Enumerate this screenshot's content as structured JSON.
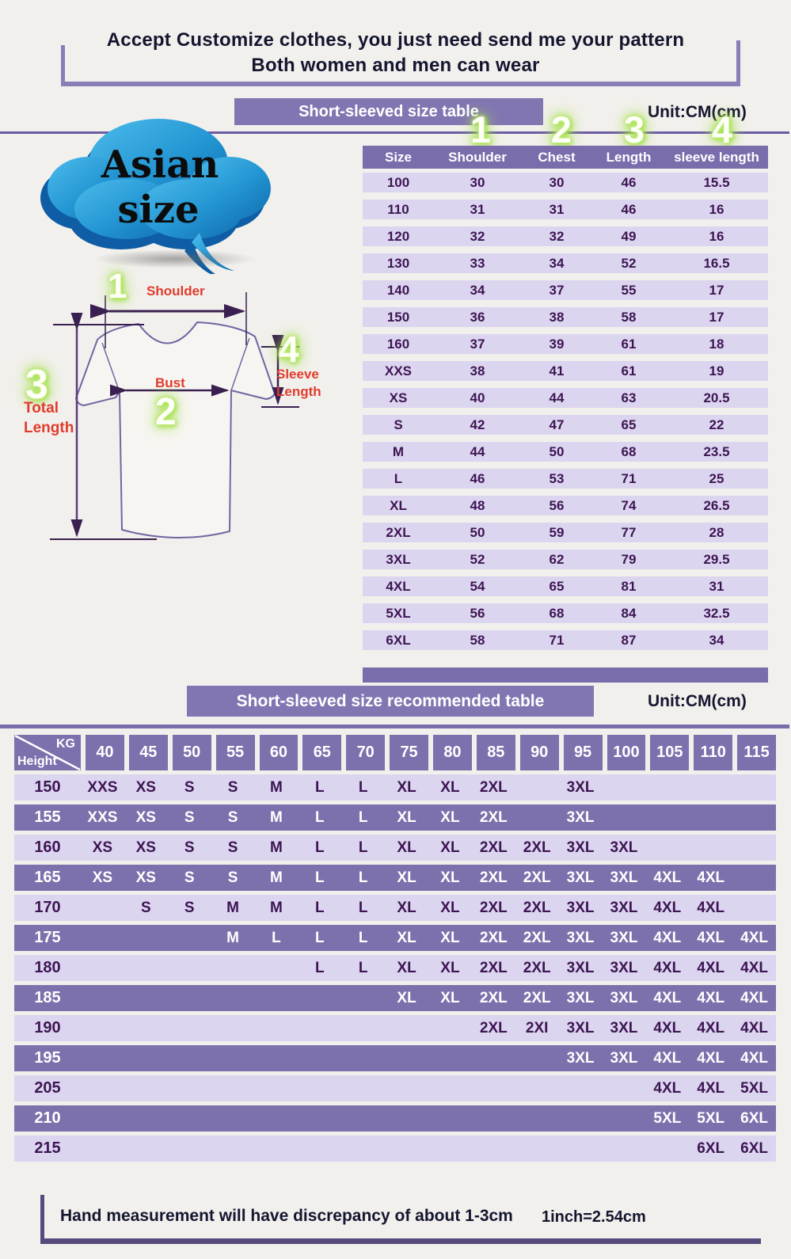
{
  "header": {
    "line1": "Accept Customize clothes, you just need send me your pattern",
    "line2": "Both women and men can wear"
  },
  "cloud": {
    "line1": "Asian",
    "line2": "size"
  },
  "diagram": {
    "marker1": {
      "num": "1",
      "label": "Shoulder"
    },
    "marker2": {
      "num": "2",
      "label": "Bust"
    },
    "marker3": {
      "num": "3",
      "label_line1": "Total",
      "label_line2": "Length"
    },
    "marker4": {
      "num": "4",
      "label_line1": "Sleeve",
      "label_line2": "Length"
    }
  },
  "section1": {
    "title": "Short-sleeved size  table",
    "unit": "Unit:CM(cm)",
    "markers": [
      "1",
      "2",
      "3",
      "4"
    ]
  },
  "section2": {
    "title": "Short-sleeved size recommended table",
    "unit": "Unit:CM(cm)",
    "corner_top": "KG",
    "corner_bottom": "Height"
  },
  "footer": {
    "note": "Hand measurement will have discrepancy of about  1-3cm",
    "conversion": "1inch=2.54cm"
  },
  "colors": {
    "accent_purple": "#8276b2",
    "row_light": "#dbd5ef",
    "row_dark": "#7e70ac",
    "text_dark": "#3d1553",
    "label_red": "#e03c2d",
    "glow_green": "#a5e24e",
    "cloud_blue": "#2f9fd8"
  },
  "chart_data": [
    {
      "type": "table",
      "title": "Short-sleeved size table",
      "unit": "CM",
      "columns": [
        "Size",
        "Shoulder",
        "Chest",
        "Length",
        "sleeve length"
      ],
      "rows": [
        [
          "100",
          "30",
          "30",
          "46",
          "15.5"
        ],
        [
          "110",
          "31",
          "31",
          "46",
          "16"
        ],
        [
          "120",
          "32",
          "32",
          "49",
          "16"
        ],
        [
          "130",
          "33",
          "34",
          "52",
          "16.5"
        ],
        [
          "140",
          "34",
          "37",
          "55",
          "17"
        ],
        [
          "150",
          "36",
          "38",
          "58",
          "17"
        ],
        [
          "160",
          "37",
          "39",
          "61",
          "18"
        ],
        [
          "XXS",
          "38",
          "41",
          "61",
          "19"
        ],
        [
          "XS",
          "40",
          "44",
          "63",
          "20.5"
        ],
        [
          "S",
          "42",
          "47",
          "65",
          "22"
        ],
        [
          "M",
          "44",
          "50",
          "68",
          "23.5"
        ],
        [
          "L",
          "46",
          "53",
          "71",
          "25"
        ],
        [
          "XL",
          "48",
          "56",
          "74",
          "26.5"
        ],
        [
          "2XL",
          "50",
          "59",
          "77",
          "28"
        ],
        [
          "3XL",
          "52",
          "62",
          "79",
          "29.5"
        ],
        [
          "4XL",
          "54",
          "65",
          "81",
          "31"
        ],
        [
          "5XL",
          "56",
          "68",
          "84",
          "32.5"
        ],
        [
          "6XL",
          "58",
          "71",
          "87",
          "34"
        ]
      ]
    },
    {
      "type": "table",
      "title": "Short-sleeved size recommended table",
      "unit": "CM",
      "weight_columns_kg": [
        "40",
        "45",
        "50",
        "55",
        "60",
        "65",
        "70",
        "75",
        "80",
        "85",
        "90",
        "95",
        "100",
        "105",
        "110",
        "115"
      ],
      "height_rows": [
        {
          "height_cm": "150",
          "sizes": [
            "XXS",
            "XS",
            "S",
            "S",
            "M",
            "L",
            "L",
            "XL",
            "XL",
            "2XL",
            "",
            "3XL",
            "",
            "",
            "",
            ""
          ]
        },
        {
          "height_cm": "155",
          "sizes": [
            "XXS",
            "XS",
            "S",
            "S",
            "M",
            "L",
            "L",
            "XL",
            "XL",
            "2XL",
            "",
            "3XL",
            "",
            "",
            "",
            ""
          ]
        },
        {
          "height_cm": "160",
          "sizes": [
            "XS",
            "XS",
            "S",
            "S",
            "M",
            "L",
            "L",
            "XL",
            "XL",
            "2XL",
            "2XL",
            "3XL",
            "3XL",
            "",
            "",
            ""
          ]
        },
        {
          "height_cm": "165",
          "sizes": [
            "XS",
            "XS",
            "S",
            "S",
            "M",
            "L",
            "L",
            "XL",
            "XL",
            "2XL",
            "2XL",
            "3XL",
            "3XL",
            "4XL",
            "4XL",
            ""
          ]
        },
        {
          "height_cm": "170",
          "sizes": [
            "",
            "S",
            "S",
            "M",
            "M",
            "L",
            "L",
            "XL",
            "XL",
            "2XL",
            "2XL",
            "3XL",
            "3XL",
            "4XL",
            "4XL",
            ""
          ]
        },
        {
          "height_cm": "175",
          "sizes": [
            "",
            "",
            "",
            "M",
            "L",
            "L",
            "L",
            "XL",
            "XL",
            "2XL",
            "2XL",
            "3XL",
            "3XL",
            "4XL",
            "4XL",
            "4XL"
          ]
        },
        {
          "height_cm": "180",
          "sizes": [
            "",
            "",
            "",
            "",
            "",
            "L",
            "L",
            "XL",
            "XL",
            "2XL",
            "2XL",
            "3XL",
            "3XL",
            "4XL",
            "4XL",
            "4XL"
          ]
        },
        {
          "height_cm": "185",
          "sizes": [
            "",
            "",
            "",
            "",
            "",
            "",
            "",
            "XL",
            "XL",
            "2XL",
            "2XL",
            "3XL",
            "3XL",
            "4XL",
            "4XL",
            "4XL"
          ]
        },
        {
          "height_cm": "190",
          "sizes": [
            "",
            "",
            "",
            "",
            "",
            "",
            "",
            "",
            "",
            "2XL",
            "2XI",
            "3XL",
            "3XL",
            "4XL",
            "4XL",
            "4XL"
          ]
        },
        {
          "height_cm": "195",
          "sizes": [
            "",
            "",
            "",
            "",
            "",
            "",
            "",
            "",
            "",
            "",
            "",
            "3XL",
            "3XL",
            "4XL",
            "4XL",
            "4XL"
          ]
        },
        {
          "height_cm": "205",
          "sizes": [
            "",
            "",
            "",
            "",
            "",
            "",
            "",
            "",
            "",
            "",
            "",
            "",
            "",
            "4XL",
            "4XL",
            "5XL"
          ]
        },
        {
          "height_cm": "210",
          "sizes": [
            "",
            "",
            "",
            "",
            "",
            "",
            "",
            "",
            "",
            "",
            "",
            "",
            "",
            "5XL",
            "5XL",
            "6XL"
          ]
        },
        {
          "height_cm": "215",
          "sizes": [
            "",
            "",
            "",
            "",
            "",
            "",
            "",
            "",
            "",
            "",
            "",
            "",
            "",
            "",
            "6XL",
            "6XL"
          ]
        }
      ]
    }
  ]
}
